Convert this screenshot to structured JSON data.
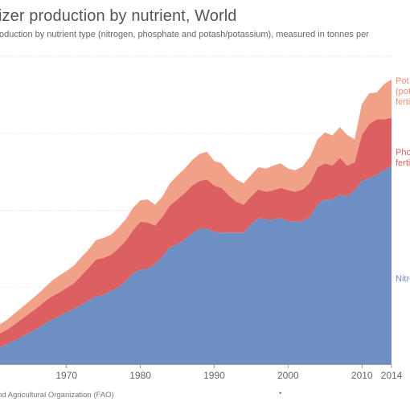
{
  "header": {
    "title": "izer production by nutrient, World",
    "subtitle": "oduction by nutrient type (nitrogen, phosphate and potash/potassium), measured in tonnes per"
  },
  "footer": {
    "source": "nd Agricultural Organization (FAO)",
    "dot": "•"
  },
  "colors": {
    "nitrogen": "#6d8fc3",
    "phosphate": "#dc5f61",
    "potash": "#f0a187",
    "grid": "#dddddd",
    "axis": "#999999"
  },
  "chart_data": {
    "type": "area",
    "stacked": true,
    "title": "izer production by nutrient, World",
    "subtitle": "oduction by nutrient type (nitrogen, phosphate and potash/potassium), measured in tonnes per",
    "xlim": [
      1961,
      2014
    ],
    "ylim": [
      0,
      200
    ],
    "grid": "horizontal",
    "x_ticks": [
      1970,
      1980,
      1990,
      2000,
      2010,
      2014
    ],
    "x_tick_labels": [
      "1970",
      "1980",
      "1990",
      "2000",
      "2010",
      "2014"
    ],
    "x": [
      1961,
      1962,
      1963,
      1964,
      1965,
      1966,
      1967,
      1968,
      1969,
      1970,
      1971,
      1972,
      1973,
      1974,
      1975,
      1976,
      1977,
      1978,
      1979,
      1980,
      1981,
      1982,
      1983,
      1984,
      1985,
      1986,
      1987,
      1988,
      1989,
      1990,
      1991,
      1992,
      1993,
      1994,
      1995,
      1996,
      1997,
      1998,
      1999,
      2000,
      2001,
      2002,
      2003,
      2004,
      2005,
      2006,
      2007,
      2008,
      2009,
      2010,
      2011,
      2012,
      2013,
      2014
    ],
    "series": [
      {
        "name": "Nitro",
        "label_lines": [
          "Nitro"
        ],
        "color": "#6d8fc3",
        "values": [
          11,
          13,
          15.5,
          18,
          20.5,
          23,
          26,
          29,
          31,
          33.5,
          36,
          38.5,
          41.5,
          44,
          45,
          47.5,
          50,
          54,
          59,
          61.5,
          62,
          65,
          70,
          76,
          78,
          81,
          85,
          88,
          88,
          86,
          85.5,
          85.5,
          85.5,
          85.5,
          91,
          95,
          94,
          94,
          95,
          93,
          92.5,
          93,
          96,
          104,
          107,
          107,
          110,
          109,
          113,
          119,
          121,
          123,
          126,
          129
        ]
      },
      {
        "name": "Pho",
        "label_lines": [
          "Pho",
          "ferti"
        ],
        "color": "#dc5f61",
        "values": [
          9,
          9.5,
          10.5,
          11.5,
          12.5,
          13.5,
          14.5,
          15,
          15.5,
          16,
          16.5,
          19,
          21,
          24,
          24,
          23.5,
          25,
          26,
          28,
          31,
          30,
          25,
          26,
          27,
          29,
          30,
          31,
          31,
          32,
          30,
          29,
          24,
          20,
          18,
          18,
          18.5,
          18,
          19,
          19.5,
          20,
          19.5,
          20.5,
          22,
          24,
          23.5,
          22,
          24,
          20,
          18,
          30,
          35,
          36,
          33,
          31
        ]
      },
      {
        "name": "Pot",
        "label_lines": [
          "Pot",
          "(pot",
          "ferti"
        ],
        "color": "#f0a187",
        "values": [
          6,
          6.5,
          7,
          7.5,
          8,
          8.5,
          9,
          10,
          11,
          11,
          11.5,
          12,
          12,
          12.5,
          13,
          13,
          13.5,
          14,
          14.5,
          14,
          15,
          13.5,
          13,
          14.5,
          15.5,
          16,
          16.5,
          17.5,
          18,
          16,
          16,
          15,
          14.5,
          14,
          14,
          14.5,
          15,
          16,
          16,
          14,
          14,
          15,
          17,
          18,
          20,
          19.5,
          20,
          20,
          15,
          20,
          20,
          17.5,
          23,
          25
        ]
      }
    ]
  }
}
